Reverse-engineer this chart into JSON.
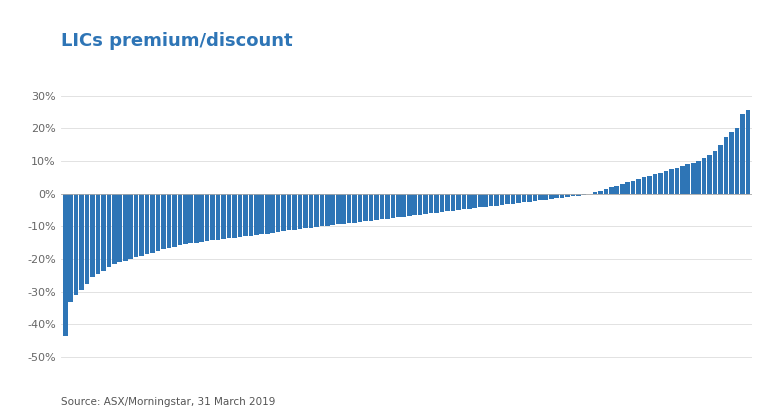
{
  "title": "LICs premium/discount",
  "title_color": "#2E75B6",
  "source_text": "Source: ASX/Morningstar, 31 March 2019",
  "bar_color": "#2E75B6",
  "background_color": "#ffffff",
  "ylim": [
    -0.52,
    0.35
  ],
  "yticks": [
    -0.5,
    -0.4,
    -0.3,
    -0.2,
    -0.1,
    0.0,
    0.1,
    0.2,
    0.3
  ],
  "values": [
    -0.435,
    -0.33,
    -0.31,
    -0.295,
    -0.275,
    -0.255,
    -0.245,
    -0.235,
    -0.225,
    -0.215,
    -0.21,
    -0.205,
    -0.2,
    -0.195,
    -0.19,
    -0.185,
    -0.18,
    -0.175,
    -0.17,
    -0.165,
    -0.162,
    -0.158,
    -0.155,
    -0.152,
    -0.15,
    -0.148,
    -0.145,
    -0.142,
    -0.14,
    -0.138,
    -0.136,
    -0.134,
    -0.132,
    -0.13,
    -0.128,
    -0.126,
    -0.124,
    -0.122,
    -0.12,
    -0.118,
    -0.115,
    -0.112,
    -0.11,
    -0.108,
    -0.106,
    -0.104,
    -0.102,
    -0.1,
    -0.098,
    -0.096,
    -0.094,
    -0.092,
    -0.09,
    -0.088,
    -0.086,
    -0.084,
    -0.082,
    -0.08,
    -0.078,
    -0.076,
    -0.074,
    -0.072,
    -0.07,
    -0.068,
    -0.066,
    -0.064,
    -0.062,
    -0.06,
    -0.058,
    -0.056,
    -0.054,
    -0.052,
    -0.05,
    -0.048,
    -0.046,
    -0.044,
    -0.042,
    -0.04,
    -0.038,
    -0.036,
    -0.034,
    -0.032,
    -0.03,
    -0.028,
    -0.026,
    -0.024,
    -0.022,
    -0.02,
    -0.018,
    -0.016,
    -0.014,
    -0.012,
    -0.01,
    -0.008,
    -0.006,
    -0.004,
    -0.002,
    0.005,
    0.01,
    0.015,
    0.02,
    0.025,
    0.03,
    0.035,
    0.04,
    0.045,
    0.05,
    0.055,
    0.06,
    0.065,
    0.07,
    0.075,
    0.08,
    0.085,
    0.09,
    0.095,
    0.1,
    0.11,
    0.12,
    0.13,
    0.15,
    0.175,
    0.19,
    0.2,
    0.245,
    0.255
  ]
}
